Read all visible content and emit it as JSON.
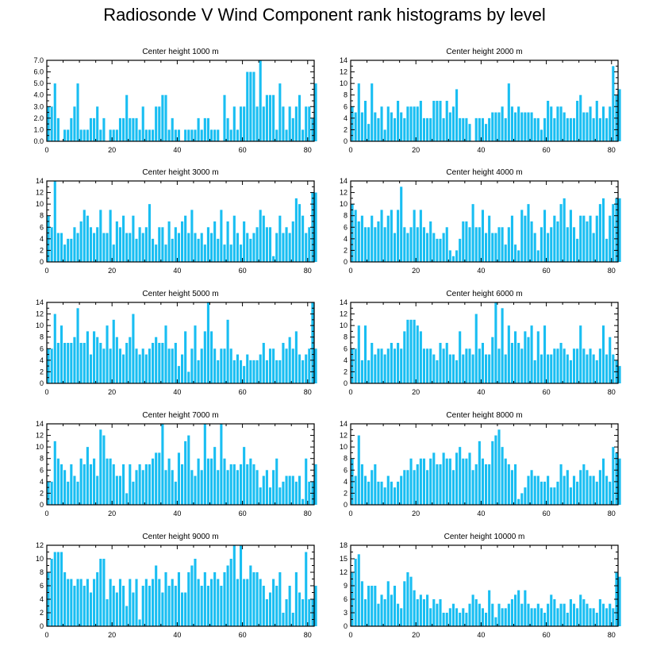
{
  "title": "Radiosonde V Wind Component rank histograms by level",
  "colors": {
    "bar": "#19bef2",
    "axis": "#000000"
  },
  "chart_data": [
    {
      "type": "bar",
      "title": "Center height 1000 m",
      "xlim": [
        0,
        82
      ],
      "ylim": [
        0,
        7
      ],
      "yticks": [
        0,
        1,
        2,
        3,
        4,
        5,
        6,
        7
      ],
      "ytick_labels": [
        "0.0",
        "1.0",
        "2.0",
        "3.0",
        "4.0",
        "5.0",
        "6.0",
        "7.0"
      ],
      "xticks": [
        0,
        20,
        40,
        60,
        80
      ],
      "xtick_labels": [
        "0",
        "20",
        "40",
        "60",
        "80"
      ],
      "values": [
        3,
        3,
        5,
        2,
        0,
        1,
        1,
        2,
        3,
        5,
        1,
        1,
        1,
        2,
        2,
        3,
        1,
        2,
        0,
        1,
        1,
        1,
        2,
        2,
        4,
        2,
        2,
        2,
        1,
        3,
        1,
        1,
        1,
        3,
        3,
        4,
        4,
        1,
        2,
        1,
        1,
        0,
        1,
        1,
        1,
        1,
        2,
        1,
        2,
        2,
        1,
        1,
        1,
        0,
        4,
        2,
        1,
        3,
        1,
        3,
        3,
        6,
        6,
        6,
        3,
        7,
        3,
        4,
        4,
        4,
        1,
        5,
        3,
        1,
        3,
        2,
        3,
        4,
        1,
        3,
        3,
        2,
        5
      ]
    },
    {
      "type": "bar",
      "title": "Center height 2000 m",
      "xlim": [
        0,
        82
      ],
      "ylim": [
        0,
        14
      ],
      "yticks": [
        0,
        2,
        4,
        6,
        8,
        10,
        12,
        14
      ],
      "ytick_labels": [
        "0",
        "2",
        "4",
        "6",
        "8",
        "10",
        "12",
        "14"
      ],
      "xticks": [
        0,
        20,
        40,
        60,
        80
      ],
      "xtick_labels": [
        "0",
        "20",
        "40",
        "60",
        "80"
      ],
      "values": [
        6,
        5,
        10,
        5,
        7,
        3,
        10,
        5,
        4,
        6,
        2,
        6,
        5,
        4,
        7,
        5,
        4,
        6,
        6,
        6,
        6,
        7,
        4,
        4,
        4,
        7,
        7,
        7,
        4,
        7,
        5,
        6,
        9,
        4,
        4,
        4,
        3,
        0,
        4,
        4,
        4,
        3,
        4,
        5,
        5,
        5,
        6,
        4,
        10,
        6,
        5,
        6,
        5,
        5,
        5,
        5,
        4,
        4,
        2,
        4,
        7,
        6,
        4,
        6,
        6,
        5,
        4,
        4,
        4,
        7,
        8,
        5,
        5,
        6,
        4,
        7,
        4,
        6,
        4,
        6,
        13,
        8,
        9
      ]
    },
    {
      "type": "bar",
      "title": "Center height 3000 m",
      "xlim": [
        0,
        82
      ],
      "ylim": [
        0,
        14
      ],
      "yticks": [
        0,
        2,
        4,
        6,
        8,
        10,
        12,
        14
      ],
      "ytick_labels": [
        "0",
        "2",
        "4",
        "6",
        "8",
        "10",
        "12",
        "14"
      ],
      "xticks": [
        0,
        20,
        40,
        60,
        80
      ],
      "xtick_labels": [
        "0",
        "20",
        "40",
        "60",
        "80"
      ],
      "values": [
        8,
        6,
        14,
        5,
        5,
        3,
        4,
        4,
        6,
        5,
        7,
        9,
        8,
        6,
        5,
        6,
        9,
        5,
        5,
        9,
        3,
        7,
        6,
        8,
        5,
        5,
        8,
        4,
        6,
        5,
        6,
        10,
        4,
        3,
        6,
        6,
        3,
        7,
        4,
        6,
        5,
        7,
        8,
        5,
        9,
        5,
        4,
        5,
        3,
        6,
        5,
        7,
        4,
        9,
        3,
        7,
        3,
        8,
        5,
        3,
        7,
        5,
        4,
        5,
        6,
        9,
        8,
        6,
        6,
        1,
        5,
        8,
        5,
        6,
        5,
        7,
        11,
        10,
        8,
        5,
        6,
        12,
        12
      ]
    },
    {
      "type": "bar",
      "title": "Center height 4000 m",
      "xlim": [
        0,
        82
      ],
      "ylim": [
        0,
        14
      ],
      "yticks": [
        0,
        2,
        4,
        6,
        8,
        10,
        12,
        14
      ],
      "ytick_labels": [
        "0",
        "2",
        "4",
        "6",
        "8",
        "10",
        "12",
        "14"
      ],
      "xticks": [
        0,
        20,
        40,
        60,
        80
      ],
      "xtick_labels": [
        "0",
        "20",
        "40",
        "60",
        "80"
      ],
      "values": [
        10,
        9,
        7,
        8,
        6,
        6,
        8,
        6,
        7,
        9,
        6,
        8,
        9,
        5,
        9,
        13,
        6,
        5,
        6,
        9,
        6,
        9,
        6,
        5,
        7,
        5,
        4,
        4,
        5,
        6,
        2,
        1,
        2,
        4,
        7,
        7,
        6,
        10,
        6,
        6,
        9,
        5,
        8,
        5,
        5,
        6,
        6,
        3,
        6,
        8,
        3,
        2,
        9,
        8,
        10,
        7,
        5,
        2,
        6,
        9,
        5,
        6,
        8,
        7,
        10,
        11,
        6,
        9,
        6,
        4,
        8,
        8,
        7,
        8,
        5,
        8,
        10,
        11,
        4,
        8,
        10,
        11,
        11
      ]
    },
    {
      "type": "bar",
      "title": "Center height 5000 m",
      "xlim": [
        0,
        82
      ],
      "ylim": [
        0,
        14
      ],
      "yticks": [
        0,
        2,
        4,
        6,
        8,
        10,
        12,
        14
      ],
      "ytick_labels": [
        "0",
        "2",
        "4",
        "6",
        "8",
        "10",
        "12",
        "14"
      ],
      "xticks": [
        0,
        20,
        40,
        60,
        80
      ],
      "xtick_labels": [
        "0",
        "20",
        "40",
        "60",
        "80"
      ],
      "values": [
        6,
        6,
        12,
        7,
        10,
        7,
        7,
        7,
        8,
        13,
        7,
        7,
        9,
        5,
        9,
        8,
        7,
        6,
        10,
        6,
        11,
        8,
        6,
        5,
        7,
        8,
        12,
        6,
        5,
        6,
        5,
        6,
        7,
        8,
        7,
        7,
        10,
        6,
        6,
        7,
        3,
        5,
        9,
        2,
        6,
        10,
        4,
        6,
        9,
        14,
        9,
        6,
        4,
        6,
        6,
        11,
        6,
        4,
        5,
        4,
        3,
        5,
        4,
        4,
        4,
        5,
        7,
        4,
        6,
        6,
        4,
        4,
        7,
        6,
        8,
        6,
        9,
        5,
        4,
        5,
        6,
        14,
        6
      ]
    },
    {
      "type": "bar",
      "title": "Center height 6000 m",
      "xlim": [
        0,
        82
      ],
      "ylim": [
        0,
        14
      ],
      "yticks": [
        0,
        2,
        4,
        6,
        8,
        10,
        12,
        14
      ],
      "ytick_labels": [
        "0",
        "2",
        "4",
        "6",
        "8",
        "10",
        "12",
        "14"
      ],
      "xticks": [
        0,
        20,
        40,
        60,
        80
      ],
      "xtick_labels": [
        "0",
        "20",
        "40",
        "60",
        "80"
      ],
      "values": [
        6,
        6,
        10,
        4,
        10,
        4,
        7,
        5,
        6,
        6,
        5,
        6,
        7,
        6,
        7,
        6,
        9,
        11,
        11,
        11,
        10,
        9,
        6,
        6,
        6,
        5,
        4,
        7,
        6,
        7,
        5,
        5,
        4,
        9,
        5,
        6,
        6,
        5,
        12,
        6,
        7,
        5,
        5,
        8,
        14,
        6,
        13,
        5,
        10,
        7,
        9,
        7,
        6,
        9,
        8,
        10,
        4,
        9,
        5,
        10,
        5,
        5,
        6,
        6,
        7,
        6,
        5,
        4,
        6,
        6,
        10,
        6,
        5,
        6,
        5,
        4,
        6,
        10,
        5,
        8,
        5,
        4,
        3
      ]
    },
    {
      "type": "bar",
      "title": "Center height 7000 m",
      "xlim": [
        0,
        82
      ],
      "ylim": [
        0,
        14
      ],
      "yticks": [
        0,
        2,
        4,
        6,
        8,
        10,
        12,
        14
      ],
      "ytick_labels": [
        "0",
        "2",
        "4",
        "6",
        "8",
        "10",
        "12",
        "14"
      ],
      "xticks": [
        0,
        20,
        40,
        60,
        80
      ],
      "xtick_labels": [
        "0",
        "20",
        "40",
        "60",
        "80"
      ],
      "values": [
        4,
        4,
        11,
        8,
        7,
        6,
        4,
        7,
        5,
        4,
        8,
        7,
        10,
        7,
        8,
        5,
        13,
        12,
        8,
        8,
        7,
        5,
        5,
        7,
        2,
        7,
        4,
        6,
        7,
        6,
        7,
        7,
        8,
        9,
        9,
        14,
        6,
        8,
        6,
        4,
        9,
        7,
        11,
        12,
        6,
        5,
        8,
        6,
        14,
        8,
        8,
        10,
        6,
        14,
        8,
        6,
        7,
        7,
        6,
        7,
        10,
        7,
        8,
        7,
        6,
        3,
        5,
        6,
        3,
        6,
        8,
        3,
        4,
        5,
        5,
        5,
        4,
        5,
        1,
        8,
        4,
        4,
        7
      ]
    },
    {
      "type": "bar",
      "title": "Center height 8000 m",
      "xlim": [
        0,
        82
      ],
      "ylim": [
        0,
        14
      ],
      "yticks": [
        0,
        2,
        4,
        6,
        8,
        10,
        12,
        14
      ],
      "ytick_labels": [
        "0",
        "2",
        "4",
        "6",
        "8",
        "10",
        "12",
        "14"
      ],
      "xticks": [
        0,
        20,
        40,
        60,
        80
      ],
      "xtick_labels": [
        "0",
        "20",
        "40",
        "60",
        "80"
      ],
      "values": [
        8,
        5,
        12,
        7,
        5,
        4,
        6,
        7,
        4,
        4,
        3,
        5,
        4,
        3,
        4,
        5,
        6,
        6,
        8,
        6,
        7,
        8,
        8,
        6,
        8,
        9,
        7,
        7,
        9,
        8,
        8,
        6,
        9,
        10,
        8,
        8,
        9,
        6,
        7,
        11,
        8,
        7,
        7,
        11,
        12,
        13,
        10,
        8,
        7,
        6,
        7,
        1,
        2,
        3,
        5,
        6,
        5,
        5,
        4,
        4,
        5,
        3,
        3,
        4,
        7,
        5,
        6,
        3,
        5,
        4,
        6,
        7,
        6,
        5,
        5,
        4,
        6,
        8,
        5,
        4,
        10,
        9,
        8
      ]
    },
    {
      "type": "bar",
      "title": "Center height 9000 m",
      "xlim": [
        0,
        82
      ],
      "ylim": [
        0,
        12
      ],
      "yticks": [
        0,
        2,
        4,
        6,
        8,
        10,
        12
      ],
      "ytick_labels": [
        "0",
        "2",
        "4",
        "6",
        "8",
        "10",
        "12"
      ],
      "xticks": [
        0,
        20,
        40,
        60,
        80
      ],
      "xtick_labels": [
        "0",
        "20",
        "40",
        "60",
        "80"
      ],
      "values": [
        8,
        10,
        11,
        11,
        11,
        8,
        7,
        7,
        6,
        7,
        7,
        6,
        7,
        5,
        7,
        8,
        10,
        10,
        4,
        7,
        6,
        5,
        7,
        6,
        3,
        7,
        5,
        7,
        1,
        6,
        7,
        6,
        7,
        9,
        7,
        5,
        8,
        6,
        7,
        6,
        8,
        5,
        5,
        8,
        9,
        10,
        7,
        6,
        8,
        6,
        7,
        8,
        7,
        6,
        8,
        9,
        10,
        12,
        7,
        12,
        7,
        7,
        9,
        8,
        8,
        7,
        6,
        4,
        5,
        7,
        6,
        8,
        2,
        4,
        6,
        2,
        8,
        5,
        4,
        11,
        4,
        4,
        6
      ]
    },
    {
      "type": "bar",
      "title": "Center height 10000 m",
      "xlim": [
        0,
        82
      ],
      "ylim": [
        0,
        18
      ],
      "yticks": [
        0,
        3,
        6,
        9,
        12,
        15,
        18
      ],
      "ytick_labels": [
        "0",
        "3",
        "6",
        "9",
        "12",
        "15",
        "18"
      ],
      "xticks": [
        0,
        20,
        40,
        60,
        80
      ],
      "xtick_labels": [
        "0",
        "20",
        "40",
        "60",
        "80"
      ],
      "values": [
        12,
        15,
        16,
        10,
        6,
        9,
        9,
        9,
        5,
        7,
        6,
        10,
        7,
        9,
        5,
        4,
        10,
        12,
        11,
        8,
        6,
        7,
        6,
        7,
        4,
        6,
        5,
        6,
        3,
        3,
        4,
        5,
        4,
        3,
        4,
        3,
        5,
        7,
        6,
        5,
        4,
        3,
        8,
        5,
        2,
        5,
        4,
        4,
        5,
        6,
        7,
        8,
        5,
        8,
        5,
        4,
        4,
        5,
        4,
        3,
        5,
        7,
        6,
        4,
        5,
        5,
        3,
        6,
        5,
        4,
        7,
        6,
        5,
        4,
        4,
        3,
        6,
        5,
        4,
        5,
        4,
        12,
        11
      ]
    }
  ]
}
